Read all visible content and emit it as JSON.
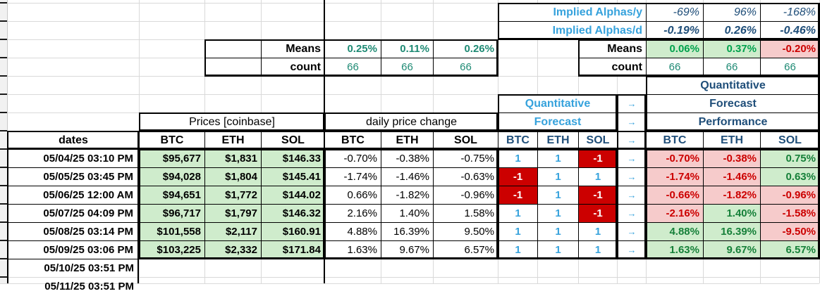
{
  "colors": {
    "light_blue": "#36a2dc",
    "navy": "#1f4e79",
    "teal": "#1e8a74",
    "green_text": "#168039",
    "bright_green": "#00a24d",
    "red_text": "#cc0000",
    "red_bg": "#cc0000",
    "pink_bg": "#f6cbcb",
    "green_bg": "#cfeccc"
  },
  "implied": {
    "rows": [
      {
        "label": "Implied Alphas/y",
        "values": [
          "-69%",
          "96%",
          "-168%"
        ]
      },
      {
        "label": "Implied Alphas/d",
        "values": [
          "-0.19%",
          "0.26%",
          "-0.46%"
        ]
      }
    ]
  },
  "means_left": {
    "label": "Means",
    "values": [
      "0.25%",
      "0.11%",
      "0.26%"
    ],
    "count_label": "count",
    "counts": [
      "66",
      "66",
      "66"
    ]
  },
  "means_right": {
    "label": "Means",
    "values": [
      "0.06%",
      "0.37%",
      "-0.20%"
    ],
    "count_label": "count",
    "counts": [
      "66",
      "66",
      "66"
    ]
  },
  "groups": {
    "prices": "Prices [coinbase]",
    "change": "daily price change",
    "forecast_lines": [
      "Quantitative",
      "Forecast"
    ],
    "performance_lines": [
      "Quantitative",
      "Forecast",
      "Performance"
    ],
    "arrow": "→"
  },
  "columns": {
    "dates": "dates",
    "coins": [
      "BTC",
      "ETH",
      "SOL"
    ]
  },
  "rows": [
    {
      "date": "05/04/25 03:10 PM",
      "prices": [
        "$95,677",
        "$1,831",
        "$146.33"
      ],
      "changes": [
        "-0.70%",
        "-0.38%",
        "-0.75%"
      ],
      "forecast": [
        1,
        1,
        -1
      ],
      "performance": [
        "-0.70%",
        "-0.38%",
        "0.75%"
      ]
    },
    {
      "date": "05/05/25 03:45 PM",
      "prices": [
        "$94,028",
        "$1,804",
        "$145.41"
      ],
      "changes": [
        "-1.74%",
        "-1.46%",
        "-0.63%"
      ],
      "forecast": [
        -1,
        1,
        1
      ],
      "performance": [
        "-1.74%",
        "-1.46%",
        "0.63%"
      ]
    },
    {
      "date": "05/06/25 12:00 AM",
      "prices": [
        "$94,651",
        "$1,772",
        "$144.02"
      ],
      "changes": [
        "0.66%",
        "-1.82%",
        "-0.96%"
      ],
      "forecast": [
        -1,
        1,
        -1
      ],
      "performance": [
        "-0.66%",
        "-1.82%",
        "-0.96%"
      ]
    },
    {
      "date": "05/07/25 04:09 PM",
      "prices": [
        "$96,717",
        "$1,797",
        "$146.32"
      ],
      "changes": [
        "2.16%",
        "1.40%",
        "1.58%"
      ],
      "forecast": [
        1,
        1,
        -1
      ],
      "performance": [
        "-2.16%",
        "1.40%",
        "-1.58%"
      ]
    },
    {
      "date": "05/08/25 03:14 PM",
      "prices": [
        "$101,558",
        "$2,117",
        "$160.91"
      ],
      "changes": [
        "4.88%",
        "16.39%",
        "9.50%"
      ],
      "forecast": [
        1,
        1,
        1
      ],
      "performance": [
        "4.88%",
        "16.39%",
        "-9.50%"
      ]
    },
    {
      "date": "05/09/25 03:06 PM",
      "prices": [
        "$103,225",
        "$2,332",
        "$171.84"
      ],
      "changes": [
        "1.63%",
        "9.67%",
        "6.57%"
      ],
      "forecast": [
        1,
        1,
        1
      ],
      "performance": [
        "1.63%",
        "9.67%",
        "6.57%"
      ]
    }
  ],
  "pending_rows": [
    "05/10/25 03:51 PM",
    "05/11/25 03:51 PM"
  ]
}
